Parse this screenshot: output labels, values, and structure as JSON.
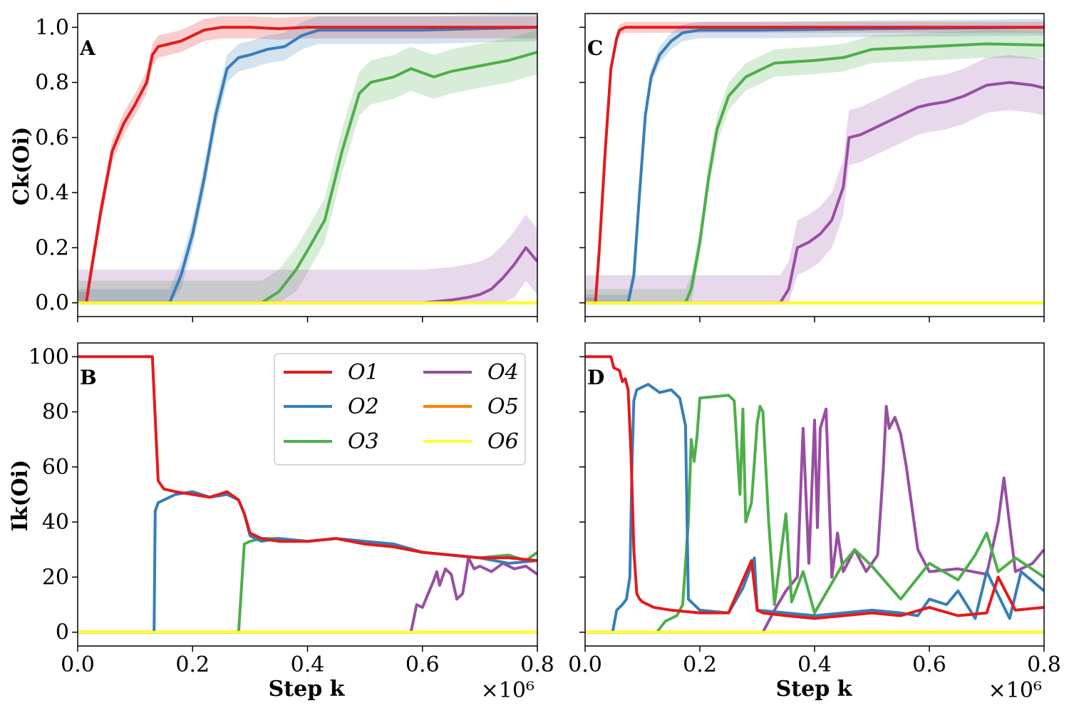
{
  "figure": {
    "x_multiplier": "×10⁶",
    "legend": [
      "O1",
      "O2",
      "O3",
      "O4",
      "O5",
      "O6"
    ],
    "colors": {
      "O1": "#e41a1c",
      "O2": "#377eb8",
      "O3": "#4daf4a",
      "O4": "#984ea3",
      "O5": "#ff7f00",
      "O6": "#ffff33"
    }
  },
  "chart_data": [
    {
      "panel": "A",
      "type": "line",
      "ylabel": "Ck(Oi)",
      "xlabel": "",
      "xlim": [
        0,
        0.8
      ],
      "ylim": [
        -0.05,
        1.05
      ],
      "xticks": [
        0.0,
        0.2,
        0.4,
        0.6,
        0.8
      ],
      "yticks": [
        0.0,
        0.2,
        0.4,
        0.6,
        0.8,
        1.0
      ],
      "xtick_labels": [
        "",
        "",
        "",
        "",
        ""
      ],
      "ytick_labels": [
        "0.0",
        "0.2",
        "0.4",
        "0.6",
        "0.8",
        "1.0"
      ],
      "series": [
        {
          "name": "O1",
          "x": [
            0.0,
            0.015,
            0.02,
            0.04,
            0.06,
            0.08,
            0.1,
            0.12,
            0.13,
            0.14,
            0.16,
            0.18,
            0.2,
            0.22,
            0.25,
            0.28,
            0.3,
            0.35,
            0.4,
            0.8
          ],
          "y": [
            0.0,
            0.0,
            0.07,
            0.33,
            0.55,
            0.65,
            0.72,
            0.8,
            0.9,
            0.93,
            0.94,
            0.95,
            0.97,
            0.99,
            1.0,
            1.0,
            1.0,
            0.995,
            1.0,
            1.0
          ],
          "band": 0.04
        },
        {
          "name": "O2",
          "x": [
            0.0,
            0.16,
            0.18,
            0.2,
            0.22,
            0.24,
            0.26,
            0.28,
            0.3,
            0.33,
            0.36,
            0.39,
            0.42,
            0.5,
            0.6,
            0.8
          ],
          "y": [
            0.0,
            0.0,
            0.1,
            0.25,
            0.45,
            0.68,
            0.85,
            0.89,
            0.9,
            0.92,
            0.93,
            0.97,
            0.99,
            0.99,
            0.99,
            1.0
          ],
          "band": 0.05
        },
        {
          "name": "O3",
          "x": [
            0.0,
            0.32,
            0.35,
            0.38,
            0.4,
            0.43,
            0.46,
            0.49,
            0.51,
            0.55,
            0.58,
            0.62,
            0.65,
            0.7,
            0.75,
            0.8
          ],
          "y": [
            0.0,
            0.0,
            0.04,
            0.12,
            0.19,
            0.3,
            0.55,
            0.76,
            0.8,
            0.82,
            0.85,
            0.82,
            0.84,
            0.86,
            0.88,
            0.91
          ],
          "band": 0.08
        },
        {
          "name": "O4",
          "x": [
            0.0,
            0.6,
            0.65,
            0.68,
            0.7,
            0.72,
            0.74,
            0.76,
            0.78,
            0.8
          ],
          "y": [
            0.0,
            0.0,
            0.01,
            0.02,
            0.03,
            0.05,
            0.09,
            0.14,
            0.2,
            0.15
          ],
          "band": 0.12
        },
        {
          "name": "O5",
          "x": [
            0.0,
            0.8
          ],
          "y": [
            0.0,
            0.0
          ],
          "band": 0
        },
        {
          "name": "O6",
          "x": [
            0.0,
            0.8
          ],
          "y": [
            0.0,
            0.0
          ],
          "band": 0
        }
      ]
    },
    {
      "panel": "C",
      "type": "line",
      "ylabel": "",
      "xlabel": "",
      "xlim": [
        0,
        0.8
      ],
      "ylim": [
        -0.05,
        1.05
      ],
      "xticks": [
        0.0,
        0.2,
        0.4,
        0.6,
        0.8
      ],
      "yticks": [
        0.0,
        0.2,
        0.4,
        0.6,
        0.8,
        1.0
      ],
      "xtick_labels": [
        "",
        "",
        "",
        "",
        ""
      ],
      "ytick_labels": [
        "",
        "",
        "",
        "",
        "",
        ""
      ],
      "series": [
        {
          "name": "O1",
          "x": [
            0.0,
            0.018,
            0.025,
            0.035,
            0.045,
            0.055,
            0.06,
            0.07,
            0.1,
            0.8
          ],
          "y": [
            0.0,
            0.0,
            0.2,
            0.55,
            0.85,
            0.96,
            0.99,
            1.0,
            1.0,
            1.0
          ],
          "band": 0.02
        },
        {
          "name": "O2",
          "x": [
            0.0,
            0.075,
            0.085,
            0.095,
            0.105,
            0.115,
            0.13,
            0.15,
            0.17,
            0.2,
            0.3,
            0.5,
            0.8
          ],
          "y": [
            0.0,
            0.0,
            0.1,
            0.4,
            0.68,
            0.82,
            0.9,
            0.95,
            0.98,
            0.99,
            0.99,
            0.995,
            1.0
          ],
          "band": 0.03
        },
        {
          "name": "O3",
          "x": [
            0.0,
            0.175,
            0.185,
            0.2,
            0.215,
            0.23,
            0.25,
            0.28,
            0.3,
            0.33,
            0.4,
            0.45,
            0.5,
            0.6,
            0.7,
            0.8
          ],
          "y": [
            0.0,
            0.0,
            0.05,
            0.22,
            0.45,
            0.63,
            0.75,
            0.82,
            0.84,
            0.87,
            0.88,
            0.89,
            0.92,
            0.93,
            0.94,
            0.935
          ],
          "band": 0.05
        },
        {
          "name": "O4",
          "x": [
            0.0,
            0.34,
            0.355,
            0.37,
            0.39,
            0.41,
            0.43,
            0.45,
            0.46,
            0.48,
            0.5,
            0.53,
            0.55,
            0.58,
            0.6,
            0.63,
            0.66,
            0.7,
            0.74,
            0.78,
            0.8
          ],
          "y": [
            0.0,
            0.0,
            0.05,
            0.2,
            0.22,
            0.25,
            0.3,
            0.42,
            0.6,
            0.61,
            0.63,
            0.66,
            0.68,
            0.71,
            0.72,
            0.73,
            0.75,
            0.79,
            0.8,
            0.79,
            0.78
          ],
          "band": 0.1
        },
        {
          "name": "O5",
          "x": [
            0.0,
            0.8
          ],
          "y": [
            0.0,
            0.0
          ],
          "band": 0
        },
        {
          "name": "O6",
          "x": [
            0.0,
            0.8
          ],
          "y": [
            0.0,
            0.0
          ],
          "band": 0
        }
      ]
    },
    {
      "panel": "B",
      "type": "line",
      "ylabel": "Ik(Oi)",
      "xlabel": "Step k",
      "xlim": [
        0,
        0.8
      ],
      "ylim": [
        -5,
        105
      ],
      "xticks": [
        0.0,
        0.2,
        0.4,
        0.6,
        0.8
      ],
      "yticks": [
        0,
        20,
        40,
        60,
        80,
        100
      ],
      "xtick_labels": [
        "0.0",
        "0.2",
        "0.4",
        "0.6",
        "0.8"
      ],
      "ytick_labels": [
        "0",
        "20",
        "40",
        "60",
        "80",
        "100"
      ],
      "series": [
        {
          "name": "O1",
          "x": [
            0.0,
            0.13,
            0.14,
            0.15,
            0.17,
            0.2,
            0.23,
            0.26,
            0.28,
            0.29,
            0.3,
            0.32,
            0.35,
            0.4,
            0.45,
            0.5,
            0.55,
            0.6,
            0.65,
            0.7,
            0.75,
            0.8
          ],
          "y": [
            100,
            100,
            55,
            52,
            51,
            50,
            49,
            51,
            48,
            43,
            36,
            34,
            33,
            33,
            34,
            32,
            31,
            29,
            28,
            27,
            27,
            26
          ]
        },
        {
          "name": "O2",
          "x": [
            0.0,
            0.133,
            0.135,
            0.14,
            0.15,
            0.17,
            0.2,
            0.23,
            0.26,
            0.28,
            0.29,
            0.3,
            0.32,
            0.35,
            0.4,
            0.45,
            0.5,
            0.55,
            0.6,
            0.65,
            0.7,
            0.75,
            0.8
          ],
          "y": [
            0,
            0,
            44,
            47,
            48,
            50,
            51,
            49,
            50,
            48,
            43,
            35,
            33,
            34,
            33,
            34,
            33,
            32,
            29,
            28,
            27,
            25,
            26
          ]
        },
        {
          "name": "O3",
          "x": [
            0.0,
            0.28,
            0.29,
            0.3,
            0.32,
            0.35,
            0.4,
            0.45,
            0.5,
            0.55,
            0.6,
            0.65,
            0.7,
            0.75,
            0.78,
            0.8
          ],
          "y": [
            0,
            0,
            32,
            33,
            34,
            34,
            33,
            34,
            32,
            31,
            29,
            28,
            27,
            28,
            26,
            29
          ]
        },
        {
          "name": "O4",
          "x": [
            0.0,
            0.58,
            0.59,
            0.6,
            0.61,
            0.62,
            0.625,
            0.63,
            0.64,
            0.65,
            0.66,
            0.67,
            0.68,
            0.69,
            0.7,
            0.72,
            0.74,
            0.76,
            0.78,
            0.8
          ],
          "y": [
            0,
            0,
            10,
            9,
            14,
            19,
            22,
            17,
            23,
            21,
            12,
            14,
            27,
            23,
            24,
            22,
            25,
            23,
            24,
            21
          ]
        },
        {
          "name": "O5",
          "x": [
            0.0,
            0.8
          ],
          "y": [
            0,
            0
          ]
        },
        {
          "name": "O6",
          "x": [
            0.0,
            0.8
          ],
          "y": [
            0,
            0
          ]
        }
      ]
    },
    {
      "panel": "D",
      "type": "line",
      "ylabel": "",
      "xlabel": "Step k",
      "xlim": [
        0,
        0.8
      ],
      "ylim": [
        -5,
        105
      ],
      "xticks": [
        0.0,
        0.2,
        0.4,
        0.6,
        0.8
      ],
      "yticks": [
        0,
        20,
        40,
        60,
        80,
        100
      ],
      "xtick_labels": [
        "0.0",
        "0.2",
        "0.4",
        "0.6",
        "0.8"
      ],
      "ytick_labels": [
        "",
        "",
        "",
        "",
        "",
        ""
      ],
      "series": [
        {
          "name": "O1",
          "x": [
            0.0,
            0.045,
            0.05,
            0.06,
            0.065,
            0.07,
            0.075,
            0.08,
            0.085,
            0.09,
            0.095,
            0.1,
            0.12,
            0.15,
            0.2,
            0.25,
            0.29,
            0.3,
            0.31,
            0.35,
            0.4,
            0.45,
            0.5,
            0.55,
            0.6,
            0.65,
            0.7,
            0.72,
            0.75,
            0.8
          ],
          "y": [
            100,
            100,
            96,
            95,
            91,
            92,
            88,
            65,
            30,
            14,
            12,
            11,
            9,
            8,
            7,
            7,
            26,
            8,
            7,
            6,
            5,
            6,
            7,
            6,
            9,
            6,
            7,
            20,
            8,
            9
          ]
        },
        {
          "name": "O2",
          "x": [
            0.0,
            0.048,
            0.055,
            0.065,
            0.072,
            0.078,
            0.082,
            0.085,
            0.09,
            0.1,
            0.11,
            0.13,
            0.15,
            0.165,
            0.175,
            0.18,
            0.2,
            0.25,
            0.275,
            0.295,
            0.3,
            0.35,
            0.4,
            0.45,
            0.5,
            0.55,
            0.58,
            0.6,
            0.63,
            0.65,
            0.68,
            0.7,
            0.74,
            0.76,
            0.8
          ],
          "y": [
            0,
            0,
            8,
            10,
            12,
            20,
            63,
            84,
            88,
            89,
            90,
            87,
            88,
            85,
            75,
            12,
            8,
            7,
            16,
            27,
            8,
            7,
            6,
            7,
            8,
            7,
            6,
            12,
            10,
            15,
            5,
            22,
            5,
            22,
            15
          ]
        },
        {
          "name": "O3",
          "x": [
            0.0,
            0.125,
            0.14,
            0.16,
            0.17,
            0.18,
            0.185,
            0.19,
            0.195,
            0.2,
            0.25,
            0.26,
            0.27,
            0.275,
            0.28,
            0.29,
            0.3,
            0.305,
            0.31,
            0.32,
            0.33,
            0.35,
            0.36,
            0.38,
            0.4,
            0.45,
            0.47,
            0.5,
            0.55,
            0.6,
            0.65,
            0.68,
            0.7,
            0.72,
            0.75,
            0.8
          ],
          "y": [
            0,
            0,
            4,
            6,
            10,
            40,
            70,
            62,
            71,
            85,
            86,
            84,
            50,
            81,
            40,
            47,
            76,
            82,
            80,
            40,
            10,
            43,
            11,
            22,
            7,
            25,
            30,
            24,
            12,
            25,
            19,
            28,
            36,
            22,
            27,
            20
          ]
        },
        {
          "name": "O4",
          "x": [
            0.0,
            0.31,
            0.33,
            0.35,
            0.37,
            0.38,
            0.39,
            0.4,
            0.405,
            0.41,
            0.42,
            0.43,
            0.44,
            0.45,
            0.47,
            0.49,
            0.51,
            0.52,
            0.525,
            0.53,
            0.54,
            0.55,
            0.56,
            0.58,
            0.6,
            0.65,
            0.7,
            0.72,
            0.73,
            0.75,
            0.78,
            0.8
          ],
          "y": [
            0,
            0,
            8,
            15,
            20,
            74,
            25,
            77,
            38,
            74,
            81,
            20,
            36,
            22,
            30,
            22,
            28,
            60,
            82,
            74,
            78,
            72,
            60,
            30,
            22,
            23,
            21,
            40,
            56,
            22,
            25,
            30
          ]
        },
        {
          "name": "O5",
          "x": [
            0.0,
            0.8
          ],
          "y": [
            0,
            0
          ]
        },
        {
          "name": "O6",
          "x": [
            0.0,
            0.8
          ],
          "y": [
            0,
            0
          ]
        }
      ]
    }
  ]
}
